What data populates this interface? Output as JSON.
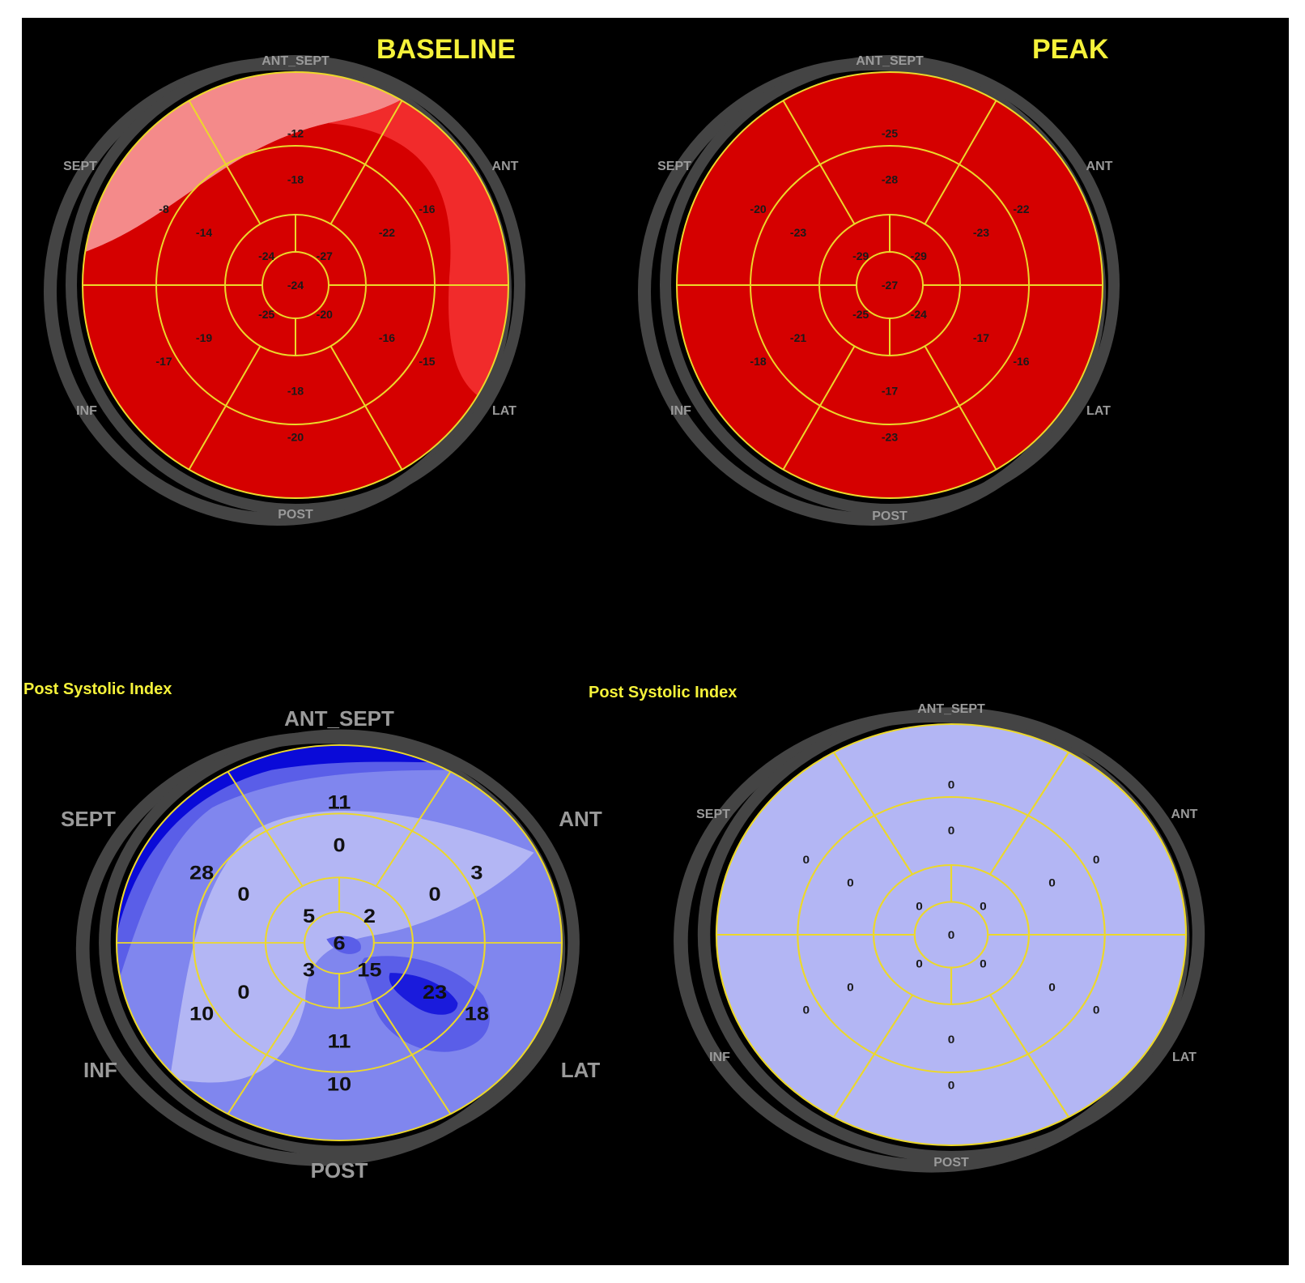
{
  "figure": {
    "colors": {
      "background": "#000000",
      "ring": "#444444",
      "grid_lines": "#ecd82a",
      "header_text": "#f5f23a",
      "wall_labels": "#9a9a9a",
      "strain_red": "#d50000",
      "strain_red_light": "#f12b2b",
      "strain_red_pale": "#f48a8a",
      "psi_blue_zero": "#b3b6f4",
      "psi_blue_low": "#8086ee",
      "psi_blue_mid": "#5a5ee8",
      "psi_blue_high": "#0a0ad8"
    },
    "wall_labels": {
      "ant_sept": "ANT_SEPT",
      "sept": "SEPT",
      "ant": "ANT",
      "inf": "INF",
      "lat": "LAT",
      "post": "POST"
    },
    "segment_order": [
      "basal_ant_sept",
      "basal_ant",
      "basal_lat",
      "basal_post",
      "basal_inf",
      "basal_sept",
      "mid_ant_sept",
      "mid_ant",
      "mid_lat",
      "mid_post",
      "mid_inf",
      "mid_sept",
      "apical_ant",
      "apical_lat",
      "apical_inf",
      "apical_sept",
      "apex"
    ],
    "bullseyes": [
      {
        "id": "baseline-strain",
        "header": "BASELINE",
        "fill": "red",
        "values": [
          "-12",
          "-16",
          "-15",
          "-20",
          "-17",
          "-8",
          "-18",
          "-22",
          "-16",
          "-18",
          "-19",
          "-14",
          "-27",
          "-20",
          "-25",
          "-24",
          "-24"
        ]
      },
      {
        "id": "peak-strain",
        "header": "PEAK",
        "fill": "red",
        "values": [
          "-25",
          "-22",
          "-16",
          "-23",
          "-18",
          "-20",
          "-28",
          "-23",
          "-17",
          "-17",
          "-21",
          "-23",
          "-29",
          "-24",
          "-25",
          "-29",
          "-27"
        ]
      },
      {
        "id": "baseline-psi",
        "header": "Post Systolic Index",
        "fill": "blue",
        "values": [
          "11",
          "3",
          "18",
          "10",
          "10",
          "28",
          "0",
          "0",
          "23",
          "11",
          "0",
          "0",
          "2",
          "15",
          "3",
          "5",
          "6"
        ]
      },
      {
        "id": "peak-psi",
        "header": "Post Systolic Index",
        "fill": "blue",
        "values": [
          "0",
          "0",
          "0",
          "0",
          "0",
          "0",
          "0",
          "0",
          "0",
          "0",
          "0",
          "0",
          "0",
          "0",
          "0",
          "0",
          "0"
        ]
      }
    ]
  }
}
